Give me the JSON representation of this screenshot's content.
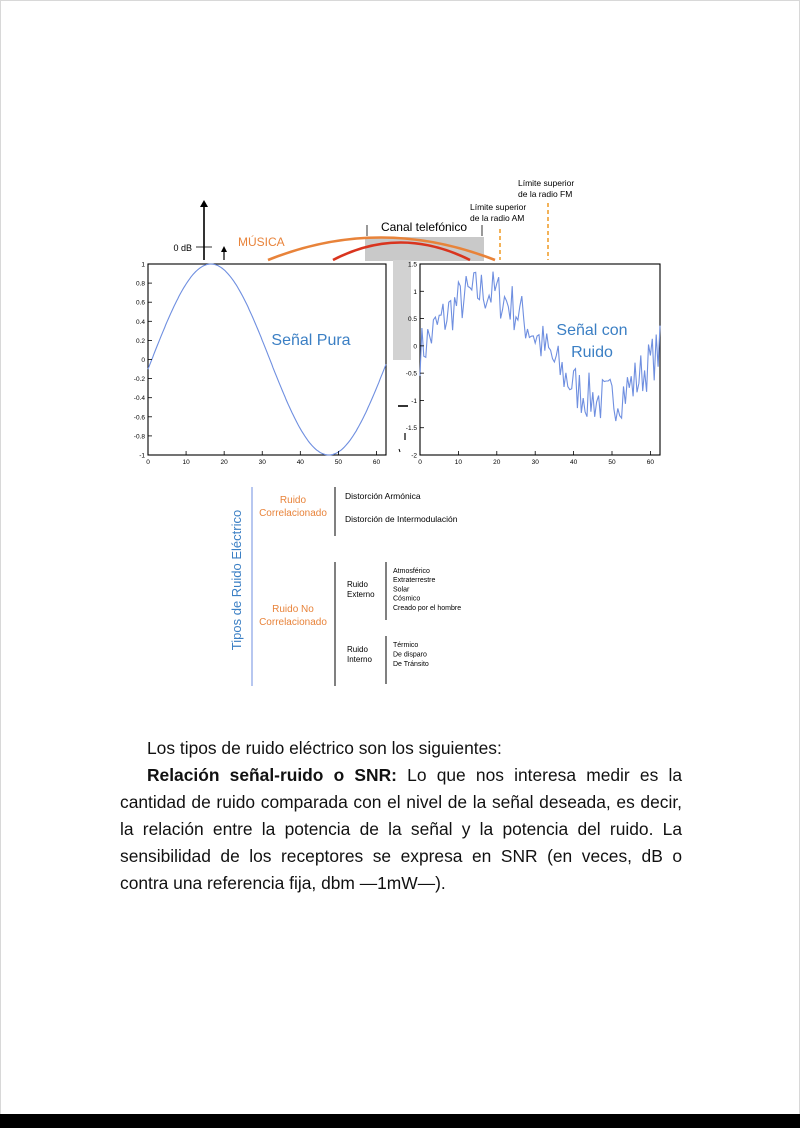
{
  "spectrum": {
    "zero_db": "0 dB",
    "musica": "MÚSICA",
    "canal_telefonico": "Canal telefónico",
    "limite_am": [
      "Límite superior",
      "de la radio AM"
    ],
    "limite_fm": [
      "Límite superior",
      "de la radio FM"
    ]
  },
  "pure_plot": {
    "label": "Señal Pura",
    "y_ticks": [
      "1",
      "0.8",
      "0.6",
      "0.4",
      "0.2",
      "0",
      "-0.2",
      "-0.4",
      "-0.6",
      "-0.8",
      "-1"
    ],
    "x_ticks": [
      "0",
      "10",
      "20",
      "30",
      "40",
      "50",
      "60"
    ]
  },
  "noisy_plot": {
    "label": [
      "Señal con",
      "Ruido"
    ],
    "y_ticks": [
      "1.5",
      "1",
      "0.5",
      "0",
      "-0.5",
      "-1",
      "-1.5",
      "-2"
    ],
    "x_ticks": [
      "0",
      "10",
      "20",
      "30",
      "40",
      "50",
      "60"
    ]
  },
  "noise_types": {
    "axis_title": "Tipos de Ruido Eléctrico",
    "correlated": [
      "Ruido",
      "Correlacionado"
    ],
    "correlated_items": [
      "Distorción Armónica",
      "Distorción de Intermodulación"
    ],
    "uncorrelated": [
      "Ruido No",
      "Correlacionado"
    ],
    "external": [
      "Ruido",
      "Externo"
    ],
    "external_items": [
      "Atmosférico",
      "Extraterrestre",
      "Solar",
      "Cósmico",
      "Creado por el hombre"
    ],
    "internal": [
      "Ruido",
      "Interno"
    ],
    "internal_items": [
      "Térmico",
      "De disparo",
      "De Tránsito"
    ]
  },
  "colors": {
    "accent_orange": "#e8833a",
    "red": "#d9341e",
    "plot_blue": "#6f8fe0",
    "label_blue": "#3b7fc4"
  },
  "text": {
    "intro": "Los tipos de ruido eléctrico son los siguientes:",
    "snr_lead": "Relación señal-ruido o SNR:",
    "snr_body": " Lo que nos interesa medir es la cantidad de ruido comparada con el nivel de la señal deseada, es decir, la relación entre la potencia de la señal y la potencia del ruido. La sensibilidad de los receptores se expresa en SNR (en veces, dB o contra una referencia fija, dbm —1mW—)."
  }
}
